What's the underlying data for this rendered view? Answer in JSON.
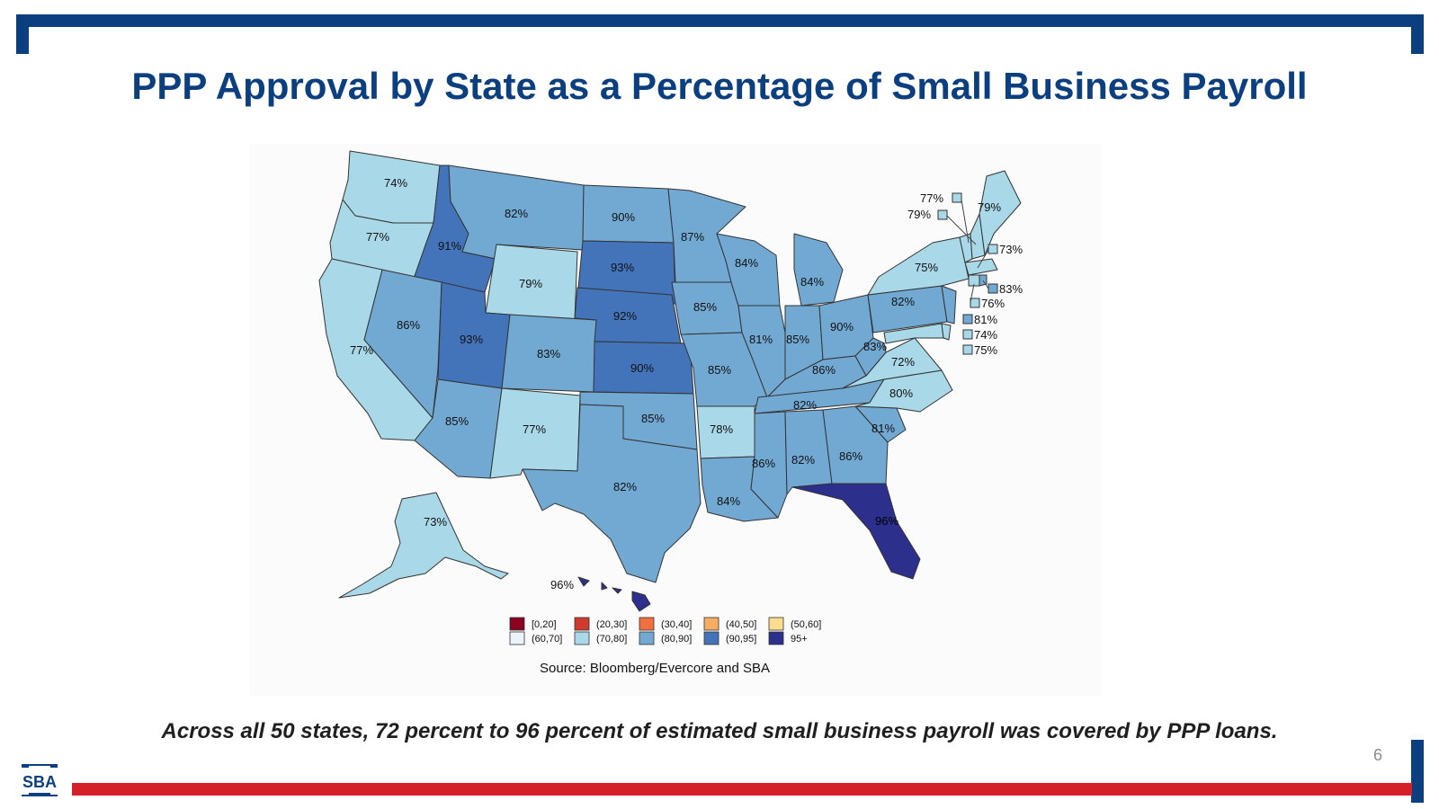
{
  "title": "PPP Approval by State as a Percentage of Small Business Payroll",
  "caption": "Across all 50 states,  72 percent to 96 percent of estimated small business payroll was covered by PPP loans.",
  "page_number": "6",
  "logo_text": "SBA",
  "source": "Source: Bloomberg/Evercore and SBA",
  "colors": {
    "navy": "#0b3f7f",
    "red": "#d62027",
    "bin_0_20": "#8b0020",
    "bin_20_30": "#d03a2e",
    "bin_30_40": "#f0703f",
    "bin_40_50": "#f6ad62",
    "bin_50_60": "#fcdc8f",
    "bin_60_70": "#eaf4fa",
    "bin_70_80": "#a9d8e8",
    "bin_80_90": "#72a9d3",
    "bin_90_95": "#4373b8",
    "bin_95_plus": "#2c2f8c"
  },
  "legend": [
    {
      "label": "[0,20]",
      "color": "#8b0020"
    },
    {
      "label": "(20,30]",
      "color": "#d03a2e"
    },
    {
      "label": "(30,40]",
      "color": "#f0703f"
    },
    {
      "label": "(40,50]",
      "color": "#f6ad62"
    },
    {
      "label": "(50,60]",
      "color": "#fcdc8f"
    },
    {
      "label": "(60,70]",
      "color": "#eaf4fa"
    },
    {
      "label": "(70,80]",
      "color": "#a9d8e8"
    },
    {
      "label": "(80,90]",
      "color": "#72a9d3"
    },
    {
      "label": "(90,95]",
      "color": "#4373b8"
    },
    {
      "label": "95+",
      "color": "#2c2f8c"
    }
  ],
  "state_values": {
    "WA": "74%",
    "OR": "77%",
    "CA": "77%",
    "ID": "91%",
    "NV": "86%",
    "MT": "82%",
    "WY": "79%",
    "UT": "93%",
    "AZ": "85%",
    "CO": "83%",
    "NM": "77%",
    "ND": "90%",
    "SD": "93%",
    "NE": "92%",
    "KS": "90%",
    "OK": "85%",
    "TX": "82%",
    "MN": "87%",
    "IA": "85%",
    "MO": "85%",
    "AR": "78%",
    "LA": "84%",
    "WI": "84%",
    "IL": "81%",
    "MI": "84%",
    "IN": "85%",
    "OH": "90%",
    "KY": "86%",
    "TN": "82%",
    "MS": "86%",
    "AL": "82%",
    "GA": "86%",
    "FL": "96%",
    "SC": "81%",
    "NC": "80%",
    "VA": "72%",
    "WV": "83%",
    "PA": "82%",
    "NY": "75%",
    "ME": "79%",
    "AK": "73%",
    "HI": "96%",
    "VT": "77%",
    "NH": "79%",
    "MA": "73%",
    "RI": "83%",
    "CT": "76%",
    "NJ": "81%",
    "DE": "74%",
    "MD": "75%"
  }
}
